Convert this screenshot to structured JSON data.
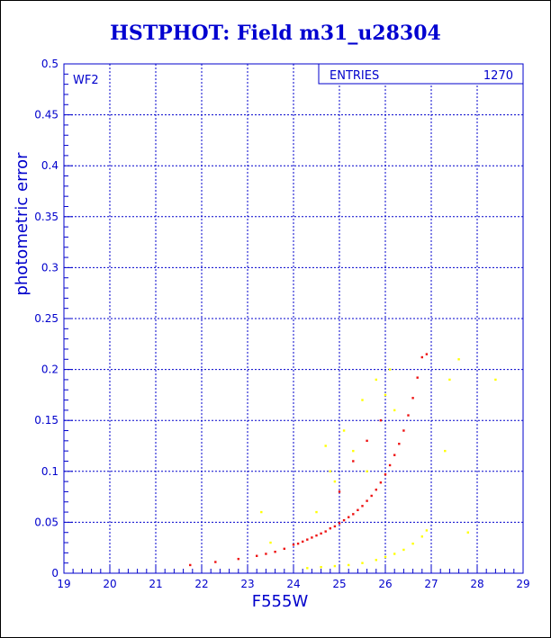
{
  "title": "HSTPHOT: Field m31_u28304",
  "chart_data": {
    "type": "scatter",
    "title": "HSTPHOT: Field m31_u28304",
    "xlabel": "F555W",
    "ylabel": "photometric error",
    "panel_label": "WF2",
    "stats": {
      "label": "ENTRIES",
      "value": "1270"
    },
    "xlim": [
      19,
      29
    ],
    "ylim": [
      0,
      0.5
    ],
    "x_ticks": [
      "19",
      "20",
      "21",
      "22",
      "23",
      "24",
      "25",
      "26",
      "27",
      "28",
      "29"
    ],
    "y_ticks": [
      "0",
      "0.05",
      "0.1",
      "0.15",
      "0.2",
      "0.25",
      "0.3",
      "0.35",
      "0.4",
      "0.45",
      "0.5"
    ],
    "grid": true,
    "colors": {
      "axis": "#0000cc",
      "grid": "#0000cc",
      "title": "#0000d0"
    },
    "series": [
      {
        "color": "#ee1111",
        "points": [
          [
            21.75,
            0.008
          ],
          [
            22.3,
            0.011
          ],
          [
            22.8,
            0.014
          ],
          [
            23.2,
            0.017
          ],
          [
            23.4,
            0.019
          ],
          [
            23.6,
            0.021
          ],
          [
            23.8,
            0.024
          ],
          [
            24.0,
            0.028
          ],
          [
            24.1,
            0.029
          ],
          [
            24.2,
            0.031
          ],
          [
            24.3,
            0.033
          ],
          [
            24.4,
            0.035
          ],
          [
            24.5,
            0.037
          ],
          [
            24.6,
            0.039
          ],
          [
            24.7,
            0.041
          ],
          [
            24.8,
            0.044
          ],
          [
            24.9,
            0.046
          ],
          [
            25.0,
            0.049
          ],
          [
            25.1,
            0.052
          ],
          [
            25.2,
            0.055
          ],
          [
            25.3,
            0.058
          ],
          [
            25.4,
            0.062
          ],
          [
            25.5,
            0.066
          ],
          [
            25.6,
            0.071
          ],
          [
            25.7,
            0.076
          ],
          [
            25.8,
            0.082
          ],
          [
            25.9,
            0.089
          ],
          [
            26.0,
            0.097
          ],
          [
            26.1,
            0.106
          ],
          [
            26.2,
            0.116
          ],
          [
            26.3,
            0.127
          ],
          [
            26.4,
            0.14
          ],
          [
            26.5,
            0.155
          ],
          [
            26.6,
            0.172
          ],
          [
            26.7,
            0.192
          ],
          [
            26.8,
            0.212
          ],
          [
            26.9,
            0.215
          ],
          [
            25.3,
            0.11
          ],
          [
            25.6,
            0.13
          ],
          [
            25.0,
            0.08
          ],
          [
            25.9,
            0.15
          ]
        ]
      },
      {
        "color": "#ffff00",
        "points": [
          [
            24.3,
            0.005
          ],
          [
            24.6,
            0.006
          ],
          [
            24.9,
            0.007
          ],
          [
            25.2,
            0.008
          ],
          [
            25.5,
            0.01
          ],
          [
            25.8,
            0.013
          ],
          [
            26.0,
            0.016
          ],
          [
            26.2,
            0.019
          ],
          [
            26.4,
            0.023
          ],
          [
            26.6,
            0.029
          ],
          [
            26.8,
            0.036
          ],
          [
            26.9,
            0.042
          ],
          [
            25.5,
            0.17
          ],
          [
            25.3,
            0.12
          ],
          [
            24.9,
            0.09
          ],
          [
            24.7,
            0.125
          ],
          [
            26.1,
            0.2
          ],
          [
            25.8,
            0.19
          ],
          [
            27.4,
            0.19
          ],
          [
            27.6,
            0.21
          ],
          [
            27.8,
            0.04
          ],
          [
            23.5,
            0.03
          ],
          [
            23.3,
            0.06
          ],
          [
            24.8,
            0.1
          ],
          [
            25.1,
            0.14
          ],
          [
            26.2,
            0.16
          ],
          [
            28.4,
            0.19
          ],
          [
            27.3,
            0.12
          ],
          [
            26.0,
            0.175
          ],
          [
            25.6,
            0.1
          ],
          [
            24.5,
            0.06
          ]
        ]
      }
    ]
  }
}
